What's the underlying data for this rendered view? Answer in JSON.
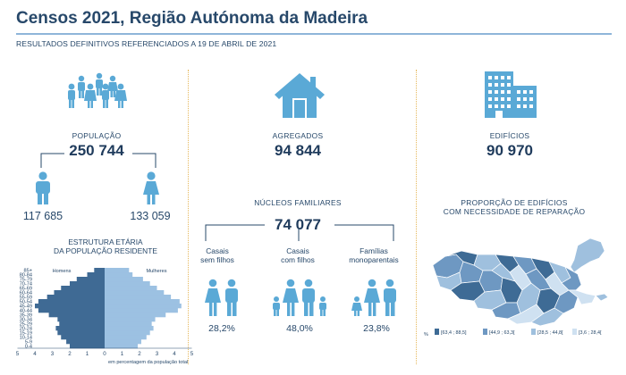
{
  "header": {
    "title": "Censos 2021, Região Autónoma da Madeira",
    "subtitle": "RESULTADOS DEFINITIVOS REFERENCIADOS A 19 DE ABRIL DE 2021"
  },
  "population": {
    "label": "POPULAÇÃO",
    "value": "250 744",
    "men": "117 685",
    "women": "133 059"
  },
  "households": {
    "label": "AGREGADOS",
    "value": "94 844"
  },
  "buildings": {
    "label": "EDIFÍCIOS",
    "value": "90 970"
  },
  "families": {
    "label": "NÚCLEOS FAMILIARES",
    "value": "74 077",
    "types": [
      {
        "line1": "Casais",
        "line2": "sem filhos",
        "pct": "28,2%"
      },
      {
        "line1": "Casais",
        "line2": "com filhos",
        "pct": "48,0%"
      },
      {
        "line1": "Famílias",
        "line2": "monoparentais",
        "pct": "23,8%"
      }
    ]
  },
  "pyramid": {
    "title_line1": "ESTRUTURA ETÁRIA",
    "title_line2": "DA POPULAÇÃO RESIDENTE",
    "men_label": "Homens",
    "women_label": "Mulheres",
    "xlabel": "em percentagem da população total",
    "colors": {
      "men": "#3f6a94",
      "women": "#9cc1e2"
    }
  },
  "repair_map": {
    "title_line1": "PROPORÇÃO DE EDIFÍCIOS",
    "title_line2": "COM NECESSIDADE DE REPARAÇÃO",
    "legend_unit": "%",
    "legend": [
      {
        "label": "[63,4 ; 88,5]",
        "color": "#3e6b95"
      },
      {
        "label": "[44,9 ; 63,3[",
        "color": "#6e98c2"
      },
      {
        "label": "[28,5 ; 44,8[",
        "color": "#9fc0de"
      },
      {
        "label": "[3,6 ; 28,4[",
        "color": "#cfe1f1"
      }
    ]
  },
  "chart_data": {
    "type": "bar",
    "orientation": "horizontal",
    "title": "ESTRUTURA ETÁRIA DA POPULAÇÃO RESIDENTE",
    "xlabel": "em percentagem da população total",
    "ylabel": "",
    "categories": [
      "0-4",
      "5-9",
      "10-14",
      "15-19",
      "20-24",
      "25-29",
      "30-34",
      "35-39",
      "40-44",
      "45-49",
      "50-54",
      "55-59",
      "60-64",
      "65-69",
      "70-74",
      "75-79",
      "80-84",
      "85+"
    ],
    "x_ticks": [
      "5",
      "4",
      "3",
      "2",
      "1",
      "0",
      "1",
      "2",
      "3",
      "4",
      "5"
    ],
    "xlim": [
      -5,
      5
    ],
    "series": [
      {
        "name": "Homens",
        "values": [
          2.0,
          2.2,
          2.5,
          2.7,
          2.8,
          2.6,
          2.7,
          3.2,
          3.8,
          4.0,
          3.8,
          3.3,
          2.9,
          2.5,
          2.0,
          1.6,
          1.0,
          0.6
        ]
      },
      {
        "name": "Mulheres",
        "values": [
          1.9,
          2.1,
          2.4,
          2.6,
          2.8,
          2.7,
          2.9,
          3.5,
          4.2,
          4.4,
          4.3,
          3.8,
          3.4,
          3.0,
          2.6,
          2.2,
          1.6,
          1.4
        ]
      }
    ]
  }
}
